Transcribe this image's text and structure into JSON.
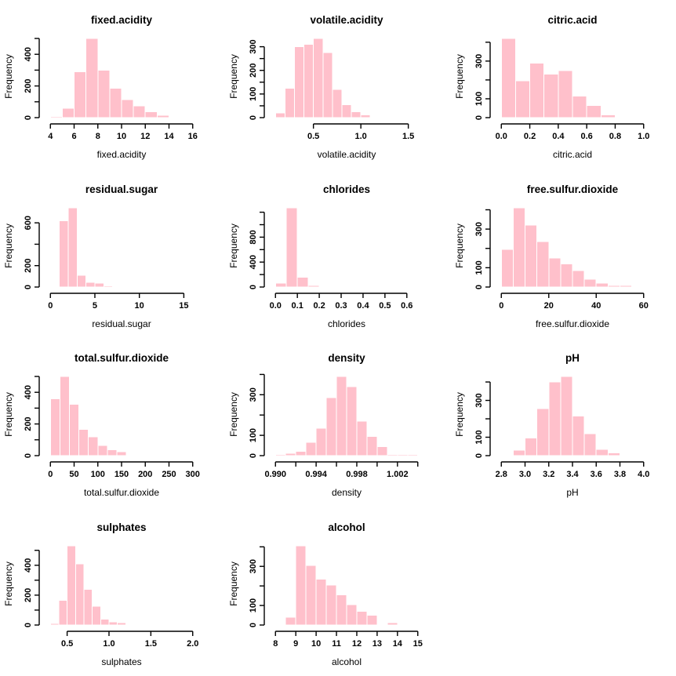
{
  "style": {
    "bar_fill": "#FFC0CB",
    "bar_border": "#FFFFFF",
    "axis_color": "#000000",
    "background": "#FFFFFF"
  },
  "ylabel_shared": "Frequency",
  "chart_data": [
    {
      "type": "bar",
      "subtype": "histogram",
      "title": "fixed.acidity",
      "xlabel": "fixed.acidity",
      "ylabel": "Frequency",
      "bin_start": 4,
      "bin_width": 1,
      "values": [
        8,
        60,
        290,
        500,
        300,
        185,
        115,
        75,
        38,
        15,
        0,
        0
      ],
      "x_ticks": [
        {
          "v": 4,
          "l": "4"
        },
        {
          "v": 6,
          "l": "6"
        },
        {
          "v": 8,
          "l": "8"
        },
        {
          "v": 10,
          "l": "10"
        },
        {
          "v": 12,
          "l": "12"
        },
        {
          "v": 14,
          "l": "14"
        },
        {
          "v": 16,
          "l": "16"
        }
      ],
      "y_ticks": [
        {
          "v": 0,
          "l": "0"
        },
        {
          "v": 100,
          "l": ""
        },
        {
          "v": 200,
          "l": "200"
        },
        {
          "v": 300,
          "l": ""
        },
        {
          "v": 400,
          "l": "400"
        },
        {
          "v": 500,
          "l": ""
        }
      ]
    },
    {
      "type": "bar",
      "subtype": "histogram",
      "title": "volatile.acidity",
      "xlabel": "volatile.acidity",
      "ylabel": "Frequency",
      "bin_start": 0.1,
      "bin_width": 0.1,
      "values": [
        20,
        125,
        300,
        310,
        335,
        275,
        120,
        55,
        25,
        12,
        0,
        0,
        0,
        0,
        0
      ],
      "x_ticks": [
        {
          "v": 0.5,
          "l": "0.5"
        },
        {
          "v": 1.0,
          "l": "1.0"
        },
        {
          "v": 1.5,
          "l": "1.5"
        }
      ],
      "y_ticks": [
        {
          "v": 0,
          "l": "0"
        },
        {
          "v": 50,
          "l": ""
        },
        {
          "v": 100,
          "l": "100"
        },
        {
          "v": 150,
          "l": ""
        },
        {
          "v": 200,
          "l": "200"
        },
        {
          "v": 250,
          "l": ""
        },
        {
          "v": 300,
          "l": "300"
        }
      ]
    },
    {
      "type": "bar",
      "subtype": "histogram",
      "title": "citric.acid",
      "xlabel": "citric.acid",
      "ylabel": "Frequency",
      "bin_start": 0,
      "bin_width": 0.1,
      "values": [
        420,
        195,
        290,
        230,
        250,
        115,
        65,
        15,
        0,
        0
      ],
      "x_ticks": [
        {
          "v": 0.0,
          "l": "0.0"
        },
        {
          "v": 0.2,
          "l": "0.2"
        },
        {
          "v": 0.4,
          "l": "0.4"
        },
        {
          "v": 0.6,
          "l": "0.6"
        },
        {
          "v": 0.8,
          "l": "0.8"
        },
        {
          "v": 1.0,
          "l": "1.0"
        }
      ],
      "y_ticks": [
        {
          "v": 0,
          "l": "0"
        },
        {
          "v": 100,
          "l": "100"
        },
        {
          "v": 200,
          "l": ""
        },
        {
          "v": 300,
          "l": "300"
        },
        {
          "v": 400,
          "l": ""
        }
      ]
    },
    {
      "type": "bar",
      "subtype": "histogram",
      "title": "residual.sugar",
      "xlabel": "residual.sugar",
      "ylabel": "Frequency",
      "bin_start": 0,
      "bin_width": 1,
      "values": [
        0,
        620,
        740,
        110,
        45,
        35,
        12,
        0,
        0,
        0,
        0,
        0,
        0,
        0,
        0,
        0
      ],
      "x_ticks": [
        {
          "v": 0,
          "l": "0"
        },
        {
          "v": 5,
          "l": "5"
        },
        {
          "v": 10,
          "l": "10"
        },
        {
          "v": 15,
          "l": "15"
        }
      ],
      "y_ticks": [
        {
          "v": 0,
          "l": "0"
        },
        {
          "v": 200,
          "l": "200"
        },
        {
          "v": 400,
          "l": ""
        },
        {
          "v": 600,
          "l": "600"
        }
      ]
    },
    {
      "type": "bar",
      "subtype": "histogram",
      "title": "chlorides",
      "xlabel": "chlorides",
      "ylabel": "Frequency",
      "bin_start": 0,
      "bin_width": 0.05,
      "values": [
        60,
        1270,
        160,
        25,
        0,
        0,
        0,
        0,
        0,
        0,
        0,
        0,
        0
      ],
      "x_ticks": [
        {
          "v": 0.0,
          "l": "0.0"
        },
        {
          "v": 0.1,
          "l": "0.1"
        },
        {
          "v": 0.2,
          "l": "0.2"
        },
        {
          "v": 0.3,
          "l": "0.3"
        },
        {
          "v": 0.4,
          "l": "0.4"
        },
        {
          "v": 0.5,
          "l": "0.5"
        },
        {
          "v": 0.6,
          "l": "0.6"
        }
      ],
      "y_ticks": [
        {
          "v": 0,
          "l": "0"
        },
        {
          "v": 200,
          "l": ""
        },
        {
          "v": 400,
          "l": "400"
        },
        {
          "v": 600,
          "l": ""
        },
        {
          "v": 800,
          "l": "800"
        },
        {
          "v": 1000,
          "l": ""
        },
        {
          "v": 1200,
          "l": ""
        }
      ]
    },
    {
      "type": "bar",
      "subtype": "histogram",
      "title": "free.sulfur.dioxide",
      "xlabel": "free.sulfur.dioxide",
      "ylabel": "Frequency",
      "bin_start": 0,
      "bin_width": 5,
      "values": [
        195,
        410,
        320,
        235,
        150,
        120,
        85,
        40,
        20,
        8,
        8,
        0
      ],
      "x_ticks": [
        {
          "v": 0,
          "l": "0"
        },
        {
          "v": 20,
          "l": "20"
        },
        {
          "v": 40,
          "l": "40"
        },
        {
          "v": 60,
          "l": "60"
        }
      ],
      "y_ticks": [
        {
          "v": 0,
          "l": "0"
        },
        {
          "v": 100,
          "l": "100"
        },
        {
          "v": 200,
          "l": ""
        },
        {
          "v": 300,
          "l": "300"
        },
        {
          "v": 400,
          "l": ""
        }
      ]
    },
    {
      "type": "bar",
      "subtype": "histogram",
      "title": "total.sulfur.dioxide",
      "xlabel": "total.sulfur.dioxide",
      "ylabel": "Frequency",
      "bin_start": 0,
      "bin_width": 20,
      "values": [
        360,
        500,
        325,
        165,
        120,
        65,
        38,
        25,
        0,
        0,
        0,
        0,
        0,
        0,
        0
      ],
      "x_ticks": [
        {
          "v": 0,
          "l": "0"
        },
        {
          "v": 50,
          "l": "50"
        },
        {
          "v": 100,
          "l": "100"
        },
        {
          "v": 150,
          "l": "150"
        },
        {
          "v": 200,
          "l": "200"
        },
        {
          "v": 250,
          "l": "250"
        },
        {
          "v": 300,
          "l": "300"
        }
      ],
      "y_ticks": [
        {
          "v": 0,
          "l": "0"
        },
        {
          "v": 100,
          "l": ""
        },
        {
          "v": 200,
          "l": "200"
        },
        {
          "v": 300,
          "l": ""
        },
        {
          "v": 400,
          "l": "400"
        },
        {
          "v": 500,
          "l": ""
        }
      ]
    },
    {
      "type": "bar",
      "subtype": "histogram",
      "title": "density",
      "xlabel": "density",
      "ylabel": "Frequency",
      "bin_start": 0.99,
      "bin_width": 0.001,
      "values": [
        5,
        12,
        22,
        65,
        135,
        285,
        390,
        340,
        170,
        95,
        45,
        6,
        5,
        5
      ],
      "x_ticks": [
        {
          "v": 0.99,
          "l": "0.990"
        },
        {
          "v": 0.992,
          "l": ""
        },
        {
          "v": 0.994,
          "l": "0.994"
        },
        {
          "v": 0.996,
          "l": ""
        },
        {
          "v": 0.998,
          "l": "0.998"
        },
        {
          "v": 1.0,
          "l": ""
        },
        {
          "v": 1.002,
          "l": "1.002"
        },
        {
          "v": 1.004,
          "l": ""
        }
      ],
      "y_ticks": [
        {
          "v": 0,
          "l": "0"
        },
        {
          "v": 100,
          "l": "100"
        },
        {
          "v": 200,
          "l": ""
        },
        {
          "v": 300,
          "l": "300"
        },
        {
          "v": 400,
          "l": ""
        }
      ]
    },
    {
      "type": "bar",
      "subtype": "histogram",
      "title": "pH",
      "xlabel": "pH",
      "ylabel": "Frequency",
      "bin_start": 2.8,
      "bin_width": 0.1,
      "values": [
        5,
        30,
        95,
        255,
        400,
        430,
        215,
        120,
        35,
        15,
        0,
        0
      ],
      "x_ticks": [
        {
          "v": 2.8,
          "l": "2.8"
        },
        {
          "v": 3.0,
          "l": "3.0"
        },
        {
          "v": 3.2,
          "l": "3.2"
        },
        {
          "v": 3.4,
          "l": "3.4"
        },
        {
          "v": 3.6,
          "l": "3.6"
        },
        {
          "v": 3.8,
          "l": "3.8"
        },
        {
          "v": 4.0,
          "l": "4.0"
        }
      ],
      "y_ticks": [
        {
          "v": 0,
          "l": "0"
        },
        {
          "v": 100,
          "l": "100"
        },
        {
          "v": 200,
          "l": ""
        },
        {
          "v": 300,
          "l": "300"
        },
        {
          "v": 400,
          "l": ""
        }
      ]
    },
    {
      "type": "bar",
      "subtype": "histogram",
      "title": "sulphates",
      "xlabel": "sulphates",
      "ylabel": "Frequency",
      "bin_start": 0.3,
      "bin_width": 0.1,
      "values": [
        10,
        165,
        530,
        410,
        240,
        125,
        40,
        20,
        15,
        0,
        0,
        0,
        0,
        0,
        0,
        0,
        0
      ],
      "x_ticks": [
        {
          "v": 0.5,
          "l": "0.5"
        },
        {
          "v": 1.0,
          "l": "1.0"
        },
        {
          "v": 1.5,
          "l": "1.5"
        },
        {
          "v": 2.0,
          "l": "2.0"
        }
      ],
      "y_ticks": [
        {
          "v": 0,
          "l": "0"
        },
        {
          "v": 100,
          "l": ""
        },
        {
          "v": 200,
          "l": "200"
        },
        {
          "v": 300,
          "l": ""
        },
        {
          "v": 400,
          "l": "400"
        },
        {
          "v": 500,
          "l": ""
        }
      ]
    },
    {
      "type": "bar",
      "subtype": "histogram",
      "title": "alcohol",
      "xlabel": "alcohol",
      "ylabel": "Frequency",
      "bin_start": 8,
      "bin_width": 0.5,
      "values": [
        0,
        40,
        405,
        305,
        235,
        205,
        155,
        105,
        70,
        50,
        5,
        12,
        0,
        0
      ],
      "x_ticks": [
        {
          "v": 8,
          "l": "8"
        },
        {
          "v": 9,
          "l": "9"
        },
        {
          "v": 10,
          "l": "10"
        },
        {
          "v": 11,
          "l": "11"
        },
        {
          "v": 12,
          "l": "12"
        },
        {
          "v": 13,
          "l": "13"
        },
        {
          "v": 14,
          "l": "14"
        },
        {
          "v": 15,
          "l": "15"
        }
      ],
      "y_ticks": [
        {
          "v": 0,
          "l": "0"
        },
        {
          "v": 100,
          "l": "100"
        },
        {
          "v": 200,
          "l": ""
        },
        {
          "v": 300,
          "l": "300"
        },
        {
          "v": 400,
          "l": ""
        }
      ]
    }
  ]
}
